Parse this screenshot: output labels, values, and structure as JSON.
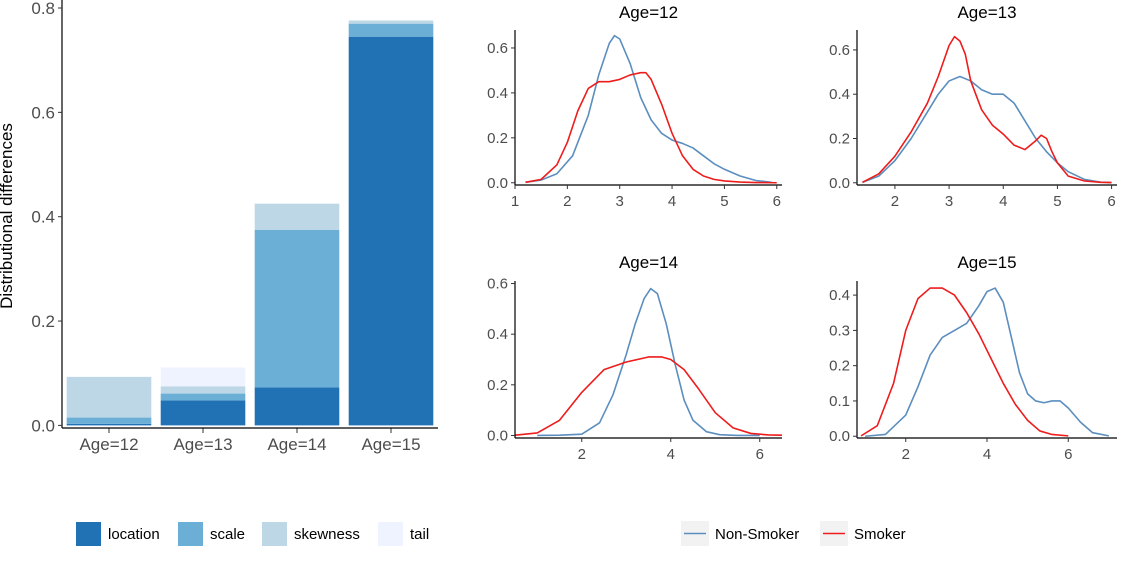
{
  "chart_data": [
    {
      "type": "bar",
      "stacked": true,
      "ylabel": "Distributional differences",
      "xlabel": "",
      "ylim": [
        -0.005,
        0.8
      ],
      "yticks": [
        0.0,
        0.2,
        0.4,
        0.6,
        0.8
      ],
      "ytick_labels": [
        "0.0",
        "0.2",
        "0.4",
        "0.6",
        "0.8"
      ],
      "categories": [
        "Age=12",
        "Age=13",
        "Age=14",
        "Age=15"
      ],
      "series": [
        {
          "name": "location",
          "color": "#2171b5",
          "values": [
            0.003,
            0.048,
            0.073,
            0.745
          ]
        },
        {
          "name": "scale",
          "color": "#6baed6",
          "values": [
            0.012,
            0.013,
            0.302,
            0.025
          ]
        },
        {
          "name": "skewness",
          "color": "#bdd7e7",
          "values": [
            0.078,
            0.014,
            0.05,
            0.006
          ]
        },
        {
          "name": "tail",
          "color": "#eff3ff",
          "values": [
            0.0,
            0.036,
            0.0,
            0.0
          ]
        }
      ],
      "legend": {
        "position": "bottom",
        "labels": [
          "location",
          "scale",
          "skewness",
          "tail"
        ]
      }
    },
    {
      "type": "line",
      "title": "Age=12",
      "xlim": [
        1,
        6.1
      ],
      "ylim": [
        -0.01,
        0.68
      ],
      "xticks": [
        1,
        2,
        3,
        4,
        5,
        6
      ],
      "yticks": [
        0.0,
        0.2,
        0.4,
        0.6
      ],
      "ytick_labels": [
        "0.0",
        "0.2",
        "0.4",
        "0.6"
      ],
      "series": [
        {
          "name": "Non-Smoker",
          "color": "#5b8ebf",
          "x": [
            1.2,
            1.5,
            1.8,
            2.1,
            2.4,
            2.6,
            2.8,
            2.9,
            3.0,
            3.2,
            3.4,
            3.6,
            3.8,
            4.0,
            4.2,
            4.4,
            4.6,
            4.8,
            5.0,
            5.3,
            5.6,
            5.9
          ],
          "y": [
            0.002,
            0.012,
            0.04,
            0.12,
            0.3,
            0.48,
            0.62,
            0.655,
            0.64,
            0.53,
            0.38,
            0.28,
            0.22,
            0.19,
            0.175,
            0.155,
            0.12,
            0.085,
            0.06,
            0.03,
            0.01,
            0.002
          ]
        },
        {
          "name": "Smoker",
          "color": "#ee1c1c",
          "x": [
            1.2,
            1.5,
            1.8,
            2.0,
            2.2,
            2.4,
            2.6,
            2.8,
            3.0,
            3.2,
            3.4,
            3.5,
            3.6,
            3.8,
            4.0,
            4.2,
            4.4,
            4.6,
            4.8,
            5.0,
            5.3,
            5.6,
            6.0
          ],
          "y": [
            0.002,
            0.015,
            0.08,
            0.18,
            0.32,
            0.42,
            0.45,
            0.45,
            0.46,
            0.48,
            0.49,
            0.49,
            0.46,
            0.35,
            0.22,
            0.12,
            0.06,
            0.03,
            0.015,
            0.008,
            0.003,
            0.001,
            0.0
          ]
        }
      ]
    },
    {
      "type": "line",
      "title": "Age=13",
      "xlim": [
        1.3,
        6.1
      ],
      "ylim": [
        -0.01,
        0.69
      ],
      "xticks": [
        2,
        3,
        4,
        5,
        6
      ],
      "yticks": [
        0.0,
        0.2,
        0.4,
        0.6
      ],
      "ytick_labels": [
        "0.0",
        "0.2",
        "0.4",
        "0.6"
      ],
      "series": [
        {
          "name": "Non-Smoker",
          "color": "#5b8ebf",
          "x": [
            1.4,
            1.7,
            2.0,
            2.3,
            2.6,
            2.8,
            3.0,
            3.2,
            3.4,
            3.6,
            3.8,
            4.0,
            4.2,
            4.4,
            4.6,
            4.8,
            5.0,
            5.2,
            5.5,
            5.8,
            6.0
          ],
          "y": [
            0.002,
            0.03,
            0.1,
            0.2,
            0.32,
            0.4,
            0.46,
            0.48,
            0.46,
            0.42,
            0.4,
            0.4,
            0.36,
            0.28,
            0.2,
            0.14,
            0.09,
            0.05,
            0.015,
            0.003,
            0.001
          ]
        },
        {
          "name": "Smoker",
          "color": "#ee1c1c",
          "x": [
            1.4,
            1.7,
            2.0,
            2.3,
            2.6,
            2.8,
            3.0,
            3.1,
            3.2,
            3.3,
            3.4,
            3.6,
            3.8,
            4.0,
            4.2,
            4.4,
            4.6,
            4.7,
            4.8,
            4.9,
            5.0,
            5.2,
            5.5,
            5.8,
            6.0
          ],
          "y": [
            0.002,
            0.04,
            0.12,
            0.23,
            0.36,
            0.48,
            0.62,
            0.66,
            0.64,
            0.58,
            0.46,
            0.33,
            0.26,
            0.22,
            0.17,
            0.15,
            0.19,
            0.215,
            0.2,
            0.14,
            0.09,
            0.03,
            0.008,
            0.002,
            0.001
          ]
        }
      ]
    },
    {
      "type": "line",
      "title": "Age=14",
      "xlim": [
        0.5,
        6.5
      ],
      "ylim": [
        -0.01,
        0.61
      ],
      "xticks": [
        2,
        4,
        6
      ],
      "yticks": [
        0.0,
        0.2,
        0.4,
        0.6
      ],
      "ytick_labels": [
        "0.0",
        "0.2",
        "0.4",
        "0.6"
      ],
      "series": [
        {
          "name": "Non-Smoker",
          "color": "#5b8ebf",
          "x": [
            1.0,
            1.5,
            2.0,
            2.4,
            2.7,
            3.0,
            3.2,
            3.4,
            3.55,
            3.7,
            3.9,
            4.1,
            4.3,
            4.5,
            4.8,
            5.1,
            5.5,
            6.0
          ],
          "y": [
            0.0,
            0.001,
            0.005,
            0.05,
            0.16,
            0.32,
            0.44,
            0.54,
            0.58,
            0.56,
            0.44,
            0.28,
            0.14,
            0.06,
            0.015,
            0.003,
            0.0,
            0.0
          ]
        },
        {
          "name": "Smoker",
          "color": "#ee1c1c",
          "x": [
            0.5,
            1.0,
            1.5,
            2.0,
            2.5,
            3.0,
            3.5,
            3.8,
            4.0,
            4.3,
            4.6,
            5.0,
            5.4,
            5.8,
            6.2,
            6.5
          ],
          "y": [
            0.001,
            0.01,
            0.06,
            0.17,
            0.26,
            0.29,
            0.31,
            0.31,
            0.3,
            0.26,
            0.19,
            0.09,
            0.03,
            0.008,
            0.002,
            0.001
          ]
        }
      ]
    },
    {
      "type": "line",
      "title": "Age=15",
      "xlim": [
        0.8,
        7.2
      ],
      "ylim": [
        -0.005,
        0.44
      ],
      "xticks": [
        2,
        4,
        6
      ],
      "yticks": [
        0.0,
        0.1,
        0.2,
        0.3,
        0.4
      ],
      "ytick_labels": [
        "0.0",
        "0.1",
        "0.2",
        "0.3",
        "0.4"
      ],
      "series": [
        {
          "name": "Non-Smoker",
          "color": "#5b8ebf",
          "x": [
            1.0,
            1.5,
            2.0,
            2.3,
            2.6,
            2.9,
            3.2,
            3.5,
            3.8,
            4.0,
            4.2,
            4.4,
            4.6,
            4.8,
            5.0,
            5.2,
            5.4,
            5.6,
            5.8,
            6.0,
            6.3,
            6.6,
            7.0
          ],
          "y": [
            0.0,
            0.005,
            0.06,
            0.14,
            0.23,
            0.28,
            0.3,
            0.32,
            0.37,
            0.41,
            0.42,
            0.38,
            0.28,
            0.18,
            0.12,
            0.1,
            0.095,
            0.1,
            0.1,
            0.08,
            0.04,
            0.01,
            0.001
          ]
        },
        {
          "name": "Smoker",
          "color": "#ee1c1c",
          "x": [
            0.9,
            1.3,
            1.7,
            2.0,
            2.3,
            2.6,
            2.9,
            3.2,
            3.5,
            3.8,
            4.1,
            4.4,
            4.7,
            5.0,
            5.3,
            5.6,
            6.0
          ],
          "y": [
            0.001,
            0.03,
            0.15,
            0.3,
            0.39,
            0.42,
            0.42,
            0.4,
            0.35,
            0.29,
            0.22,
            0.15,
            0.09,
            0.045,
            0.015,
            0.005,
            0.001
          ]
        }
      ]
    }
  ],
  "legends": {
    "bar_legend": [
      {
        "label": "location",
        "color": "#2171b5"
      },
      {
        "label": "scale",
        "color": "#6baed6"
      },
      {
        "label": "skewness",
        "color": "#bdd7e7"
      },
      {
        "label": "tail",
        "color": "#eff3ff"
      }
    ],
    "line_legend": [
      {
        "label": "Non-Smoker",
        "color": "#5b8ebf"
      },
      {
        "label": "Smoker",
        "color": "#ee1c1c"
      }
    ]
  }
}
